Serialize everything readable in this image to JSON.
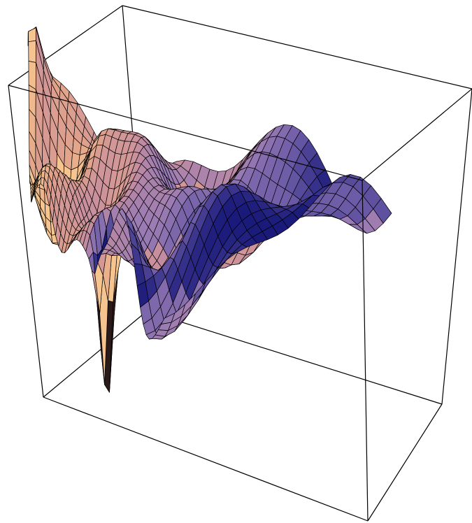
{
  "chart_data": {
    "type": "surface3d",
    "title": "",
    "xlabel": "",
    "ylabel": "",
    "zlabel": "",
    "axes_shown": false,
    "bounding_box": true,
    "mesh": true,
    "grid_resolution": {
      "u": 44,
      "v": 22
    },
    "colors": {
      "background": "#ffffff",
      "box_edge": "#000000",
      "mesh_line": "#000000",
      "palette": [
        "#f6c58f",
        "#e3a48a",
        "#c88f9e",
        "#9a7bb4",
        "#6a5aa6",
        "#1a1a7a"
      ],
      "spike": "#2a1a1a"
    }
  }
}
